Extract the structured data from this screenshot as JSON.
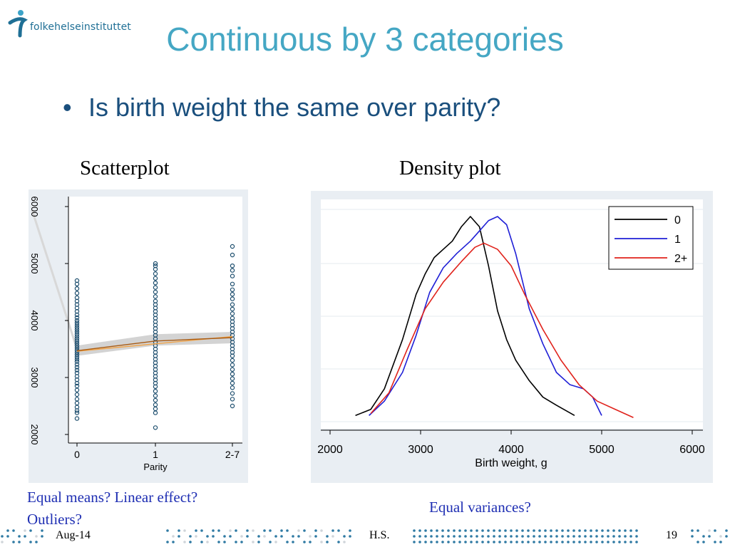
{
  "header": {
    "logo_text": "folkehelseinstituttet",
    "title": "Continuous by 3 categories"
  },
  "bullets": [
    {
      "marker": "•",
      "text": "Is birth weight the same over parity?"
    }
  ],
  "left_panel": {
    "caption": "Scatterplot",
    "note_line1": "Equal means? Linear effect?",
    "note_line2": "Outliers?"
  },
  "right_panel": {
    "caption": "Density plot",
    "note": "Equal variances?"
  },
  "footer": {
    "date": "Aug-14",
    "author": "H.S.",
    "page": "19"
  },
  "colors": {
    "title": "#45a7c4",
    "bullet": "#1a4f7d",
    "note": "#1f2fb3",
    "series_0": "#000000",
    "series_1": "#1f1fd6",
    "series_2": "#e0221b",
    "scatter_marker": "#1d4e6e",
    "fit_line": "#e07a10",
    "ci_band": "#c8c8c8"
  },
  "chart_data": [
    {
      "type": "scatter",
      "title": "Scatterplot",
      "categories": [
        "0",
        "1",
        "2-7"
      ],
      "xlabel": "Parity",
      "ylabel": "",
      "y_ticks": [
        "2000",
        "3000",
        "4000",
        "5000",
        "6000"
      ],
      "ylim": [
        2000,
        6000
      ],
      "points": [
        {
          "x": "0",
          "y": [
            2280,
            2380,
            2420,
            2480,
            2550,
            2620,
            2700,
            2780,
            2850,
            2900,
            2960,
            3020,
            3080,
            3130,
            3180,
            3230,
            3280,
            3320,
            3360,
            3400,
            3440,
            3480,
            3520,
            3560,
            3600,
            3640,
            3680,
            3720,
            3760,
            3800,
            3840,
            3880,
            3920,
            3960,
            4000,
            4050,
            4100,
            4160,
            4220,
            4280,
            4340,
            4400,
            4480,
            4560,
            4640,
            4700
          ]
        },
        {
          "x": "1",
          "y": [
            2120,
            2380,
            2450,
            2520,
            2600,
            2680,
            2760,
            2840,
            2900,
            2960,
            3020,
            3080,
            3140,
            3200,
            3260,
            3320,
            3380,
            3440,
            3500,
            3560,
            3620,
            3680,
            3740,
            3800,
            3860,
            3920,
            3980,
            4040,
            4100,
            4160,
            4220,
            4280,
            4340,
            4420,
            4500,
            4580,
            4660,
            4740,
            4820,
            4900,
            4960,
            5000
          ]
        },
        {
          "x": "2-7",
          "y": [
            2500,
            2620,
            2720,
            2820,
            2900,
            2980,
            3060,
            3140,
            3220,
            3300,
            3380,
            3440,
            3500,
            3560,
            3620,
            3680,
            3740,
            3800,
            3860,
            3920,
            3980,
            4040,
            4120,
            4200,
            4280,
            4380,
            4460,
            4540,
            4640,
            4780,
            4880,
            4960,
            5150,
            5300
          ]
        }
      ],
      "fit_lines": [
        {
          "name": "linear",
          "y": [
            3460,
            3720
          ]
        },
        {
          "name": "smooth",
          "y": [
            3470,
            3640,
            3700
          ]
        }
      ],
      "ci_band": {
        "lower": [
          3380,
          3560,
          3600
        ],
        "upper": [
          3560,
          3760,
          3800
        ]
      },
      "grid": false
    },
    {
      "type": "line",
      "title": "Density plot",
      "xlabel": "Birth weight, g",
      "ylabel": "",
      "xlim": [
        2000,
        6000
      ],
      "x_ticks": [
        "2000",
        "3000",
        "4000",
        "5000",
        "6000"
      ],
      "legend_position": "top-right",
      "grid": true,
      "series": [
        {
          "name": "0",
          "color": "#000000",
          "points": [
            [
              2280,
              0.03
            ],
            [
              2450,
              0.06
            ],
            [
              2600,
              0.16
            ],
            [
              2800,
              0.4
            ],
            [
              2950,
              0.62
            ],
            [
              3050,
              0.72
            ],
            [
              3150,
              0.8
            ],
            [
              3250,
              0.84
            ],
            [
              3350,
              0.88
            ],
            [
              3450,
              0.95
            ],
            [
              3550,
              1.0
            ],
            [
              3650,
              0.95
            ],
            [
              3750,
              0.76
            ],
            [
              3850,
              0.54
            ],
            [
              3950,
              0.4
            ],
            [
              4050,
              0.3
            ],
            [
              4200,
              0.2
            ],
            [
              4350,
              0.12
            ],
            [
              4500,
              0.08
            ],
            [
              4700,
              0.03
            ]
          ]
        },
        {
          "name": "1",
          "color": "#1f1fd6",
          "points": [
            [
              2430,
              0.03
            ],
            [
              2600,
              0.1
            ],
            [
              2800,
              0.24
            ],
            [
              2950,
              0.42
            ],
            [
              3100,
              0.63
            ],
            [
              3250,
              0.75
            ],
            [
              3400,
              0.82
            ],
            [
              3550,
              0.88
            ],
            [
              3650,
              0.93
            ],
            [
              3750,
              0.98
            ],
            [
              3850,
              1.0
            ],
            [
              3950,
              0.96
            ],
            [
              4050,
              0.82
            ],
            [
              4200,
              0.55
            ],
            [
              4350,
              0.38
            ],
            [
              4500,
              0.24
            ],
            [
              4650,
              0.18
            ],
            [
              4800,
              0.16
            ],
            [
              4900,
              0.12
            ],
            [
              5000,
              0.03
            ]
          ]
        },
        {
          "name": "2+",
          "color": "#e0221b",
          "points": [
            [
              2450,
              0.04
            ],
            [
              2650,
              0.14
            ],
            [
              2850,
              0.35
            ],
            [
              3050,
              0.55
            ],
            [
              3250,
              0.68
            ],
            [
              3450,
              0.78
            ],
            [
              3600,
              0.85
            ],
            [
              3700,
              0.87
            ],
            [
              3850,
              0.84
            ],
            [
              4000,
              0.76
            ],
            [
              4150,
              0.62
            ],
            [
              4350,
              0.45
            ],
            [
              4550,
              0.3
            ],
            [
              4750,
              0.18
            ],
            [
              4950,
              0.1
            ],
            [
              5150,
              0.06
            ],
            [
              5350,
              0.02
            ]
          ]
        }
      ]
    }
  ]
}
